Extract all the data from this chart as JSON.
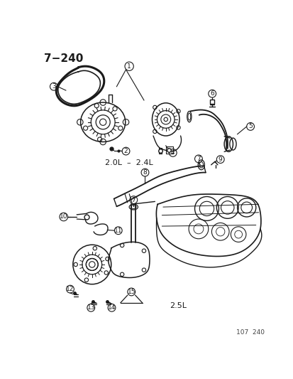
{
  "title": "7−240",
  "footer": "107  240",
  "label_2ol_24l": "2.0L  –  2.4L",
  "label_25l": "2.5L",
  "bg_color": "#ffffff",
  "lc": "#1a1a1a",
  "tc": "#1a1a1a",
  "figsize": [
    4.14,
    5.33
  ],
  "dpi": 100
}
